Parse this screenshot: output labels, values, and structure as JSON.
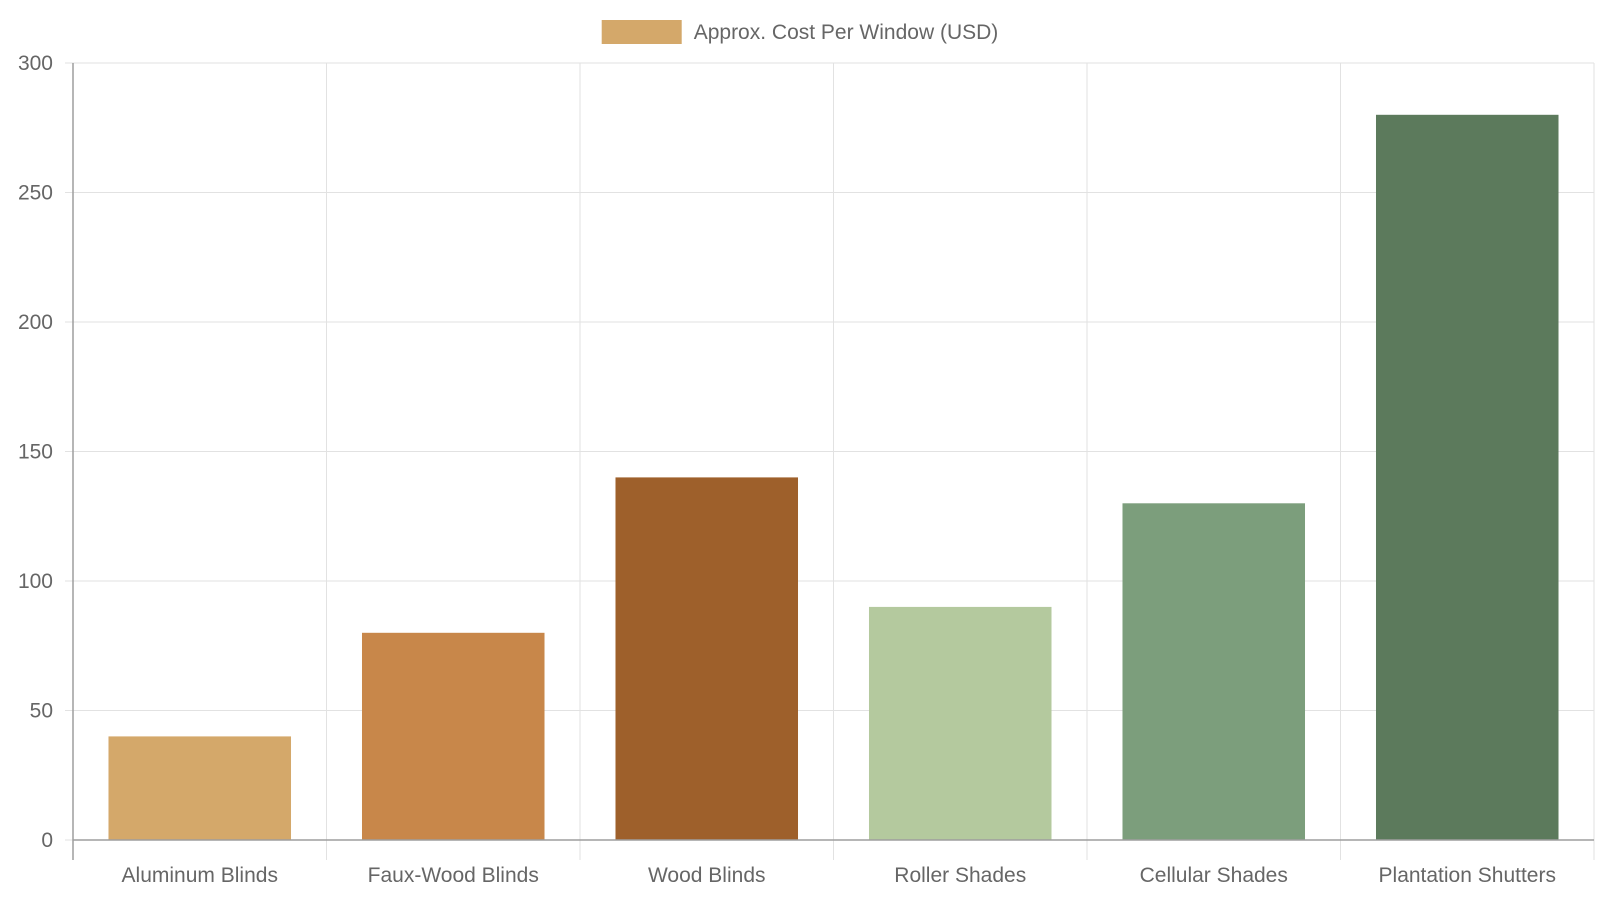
{
  "chart_data": {
    "type": "bar",
    "title": "",
    "xlabel": "",
    "ylabel": "",
    "categories": [
      "Aluminum Blinds",
      "Faux-Wood Blinds",
      "Wood Blinds",
      "Roller Shades",
      "Cellular Shades",
      "Plantation Shutters"
    ],
    "series": [
      {
        "name": "Approx. Cost Per Window (USD)",
        "values": [
          40,
          80,
          140,
          90,
          130,
          280
        ],
        "colors": [
          "#d4a86a",
          "#c8874a",
          "#9e602b",
          "#b4c99e",
          "#7c9e7c",
          "#5c7a5c"
        ]
      }
    ],
    "ylim": [
      0,
      300
    ],
    "yticks": [
      0,
      50,
      100,
      150,
      200,
      250,
      300
    ],
    "legend_position": "top-center",
    "grid": true,
    "gridline_color": "#e2e2e2",
    "axis_color": "#9e9e9e",
    "legend_swatch_color": "#d4a86a"
  }
}
